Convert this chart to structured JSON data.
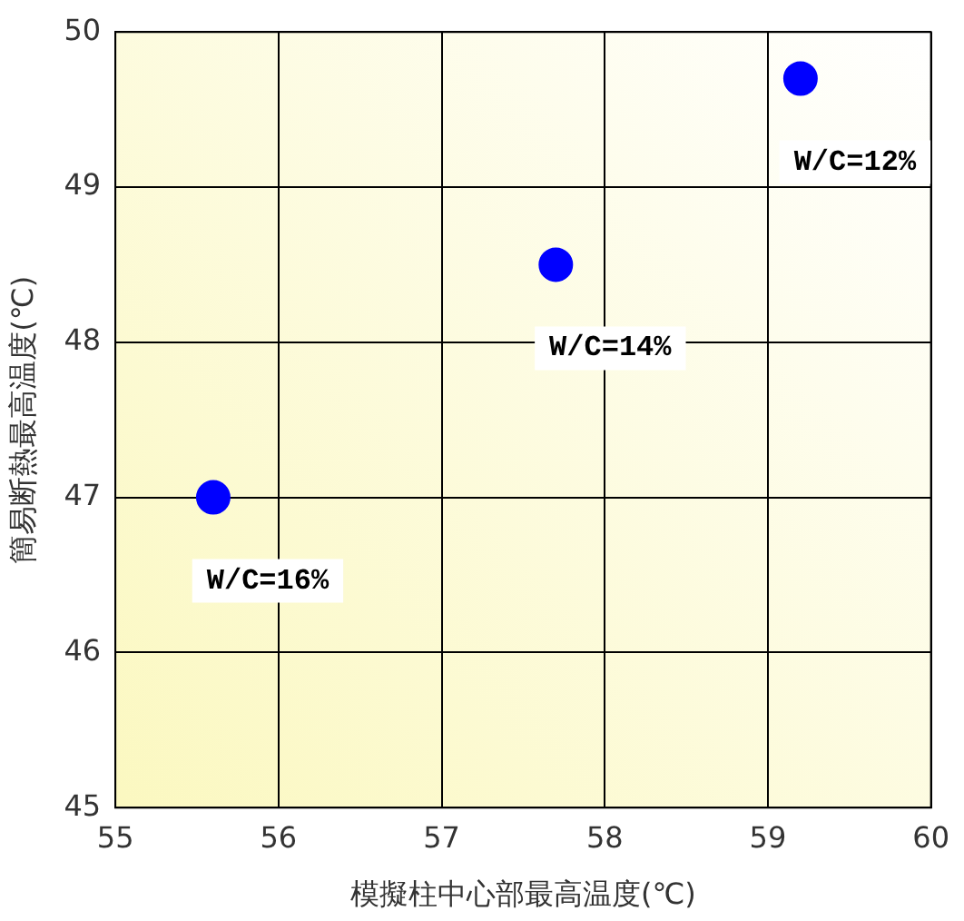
{
  "chart_data": {
    "type": "scatter",
    "xlabel": "模擬柱中心部最高温度(℃)",
    "ylabel": "簡易断熱最高温度(℃)",
    "x": [
      55.6,
      57.7,
      59.2
    ],
    "series": [
      {
        "color": "#0000ff",
        "values": [
          47.0,
          48.5,
          49.7
        ]
      }
    ],
    "xlim": [
      55,
      60
    ],
    "xticks": [
      55,
      56,
      57,
      58,
      59,
      60
    ],
    "ylim": [
      45,
      50
    ],
    "yticks": [
      45,
      46,
      47,
      48,
      49,
      50
    ],
    "grid": true,
    "legend": false,
    "marker": "circle",
    "annotations": [
      {
        "text": "W/C=16%",
        "x": 55.6,
        "y": 47.0
      },
      {
        "text": "W/C=14%",
        "x": 57.7,
        "y": 48.5
      },
      {
        "text": "W/C=12%",
        "x": 59.2,
        "y": 49.7
      }
    ]
  }
}
